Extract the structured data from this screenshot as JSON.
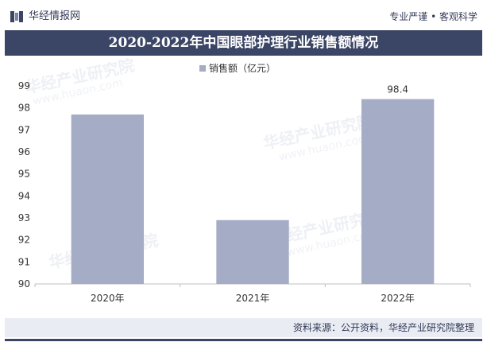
{
  "header": {
    "brand": "华经情报网",
    "tagline": "专业严谨 • 客观科学"
  },
  "watermark": {
    "name": "华经产业研究院",
    "url": "www.huaon.com"
  },
  "chart_data": {
    "type": "bar",
    "title": "2020-2022年中国眼部护理行业销售额情况",
    "categories": [
      "2020年",
      "2021年",
      "2022年"
    ],
    "series": [
      {
        "name": "销售额（亿元）",
        "values": [
          97.7,
          92.9,
          98.4
        ]
      }
    ],
    "data_labels": [
      "",
      "",
      "98.4"
    ],
    "ylim": [
      90,
      99
    ],
    "yticks": [
      90,
      91,
      92,
      93,
      94,
      95,
      96,
      97,
      98,
      99
    ],
    "legend_position": "top-center",
    "grid": false,
    "bar_color": "#a4acc6"
  },
  "footer": {
    "source": "资料来源：公开资料，华经产业研究院整理"
  }
}
